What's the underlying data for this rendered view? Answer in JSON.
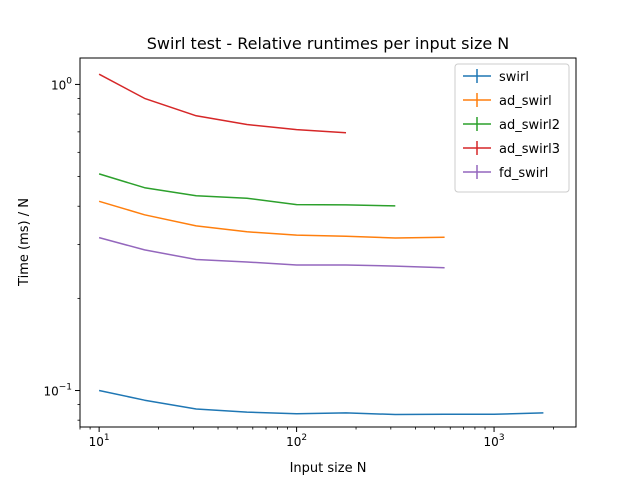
{
  "chart_data": {
    "type": "line",
    "title": "Swirl test - Relative runtimes per input size N",
    "xlabel": "Input size N",
    "ylabel": "Time (ms) / N",
    "xscale": "log",
    "yscale": "log",
    "xlim": [
      8.0,
      2600
    ],
    "ylim": [
      0.076,
      1.22
    ],
    "grid": false,
    "legend_position": "top-right",
    "x_ticks": [
      {
        "value": 10,
        "base": "10",
        "exp": "1"
      },
      {
        "value": 100,
        "base": "10",
        "exp": "2"
      },
      {
        "value": 1000,
        "base": "10",
        "exp": "3"
      }
    ],
    "y_ticks": [
      {
        "value": 0.1,
        "base": "10",
        "exp": "−1"
      },
      {
        "value": 1.0,
        "base": "10",
        "exp": "0"
      }
    ],
    "series": [
      {
        "name": "swirl",
        "color": "#1f77b4",
        "x": [
          10,
          17,
          31,
          56,
          100,
          178,
          316,
          562,
          1000,
          1778
        ],
        "y": [
          0.1,
          0.093,
          0.087,
          0.085,
          0.084,
          0.0845,
          0.0835,
          0.0836,
          0.0836,
          0.0845
        ]
      },
      {
        "name": "ad_swirl",
        "color": "#ff7f0e",
        "x": [
          10,
          17,
          31,
          56,
          100,
          178,
          316,
          562
        ],
        "y": [
          0.415,
          0.375,
          0.345,
          0.33,
          0.322,
          0.319,
          0.315,
          0.317
        ]
      },
      {
        "name": "ad_swirl2",
        "color": "#2ca02c",
        "x": [
          10,
          17,
          31,
          56,
          100,
          178,
          316
        ],
        "y": [
          0.51,
          0.46,
          0.433,
          0.425,
          0.405,
          0.404,
          0.401
        ]
      },
      {
        "name": "ad_swirl3",
        "color": "#d62728",
        "x": [
          10,
          17,
          31,
          56,
          100,
          178
        ],
        "y": [
          1.08,
          0.9,
          0.79,
          0.74,
          0.712,
          0.695
        ]
      },
      {
        "name": "fd_swirl",
        "color": "#9467bd",
        "x": [
          10,
          17,
          31,
          56,
          100,
          178,
          316,
          562
        ],
        "y": [
          0.316,
          0.288,
          0.268,
          0.263,
          0.257,
          0.257,
          0.255,
          0.252
        ]
      }
    ]
  }
}
